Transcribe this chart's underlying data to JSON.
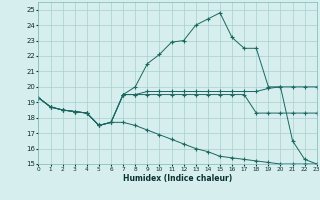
{
  "xlabel": "Humidex (Indice chaleur)",
  "bg_color": "#d6eeee",
  "grid_color": "#a8d0d0",
  "line_color": "#1a6860",
  "ylim": [
    15,
    25.5
  ],
  "xlim": [
    0,
    23
  ],
  "yticks": [
    15,
    16,
    17,
    18,
    19,
    20,
    21,
    22,
    23,
    24,
    25
  ],
  "xticks": [
    0,
    1,
    2,
    3,
    4,
    5,
    6,
    7,
    8,
    9,
    10,
    11,
    12,
    13,
    14,
    15,
    16,
    17,
    18,
    19,
    20,
    21,
    22,
    23
  ],
  "series": [
    [
      19.3,
      18.7,
      18.5,
      18.4,
      18.3,
      17.5,
      17.7,
      17.7,
      17.5,
      17.2,
      16.9,
      16.6,
      16.3,
      16.0,
      15.8,
      15.5,
      15.4,
      15.3,
      15.2,
      15.1,
      15.0,
      15.0,
      15.0,
      15.0
    ],
    [
      19.3,
      18.7,
      18.5,
      18.4,
      18.3,
      17.5,
      17.7,
      19.5,
      19.5,
      19.5,
      19.5,
      19.5,
      19.5,
      19.5,
      19.5,
      19.5,
      19.5,
      19.5,
      18.3,
      18.3,
      18.3,
      18.3,
      18.3,
      18.3
    ],
    [
      19.3,
      18.7,
      18.5,
      18.4,
      18.3,
      17.5,
      17.7,
      19.5,
      19.5,
      19.7,
      19.7,
      19.7,
      19.7,
      19.7,
      19.7,
      19.7,
      19.7,
      19.7,
      19.7,
      19.9,
      20.0,
      20.0,
      20.0,
      20.0
    ],
    [
      19.3,
      18.7,
      18.5,
      18.4,
      18.3,
      17.5,
      17.7,
      19.5,
      20.0,
      21.5,
      22.1,
      22.9,
      23.0,
      24.0,
      24.4,
      24.8,
      23.2,
      22.5,
      22.5,
      20.0,
      20.0,
      16.5,
      15.3,
      15.0
    ]
  ]
}
